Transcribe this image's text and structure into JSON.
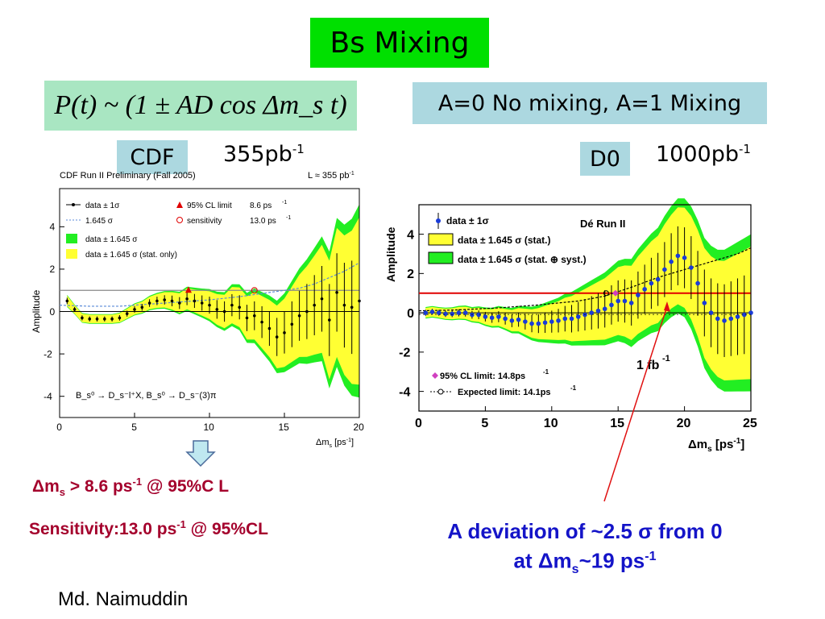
{
  "slide": {
    "title": "Bs Mixing",
    "formula": "P(t) ~ (1 ± AD cos Δm_s t)",
    "mixing_note": "A=0 No mixing, A=1 Mixing",
    "left_exp": {
      "name": "CDF",
      "lumi": "355pb",
      "lumi_exp": "-1"
    },
    "right_exp": {
      "name": "D0",
      "lumi": "1000pb",
      "lumi_exp": "-1"
    },
    "limit_text": {
      "pre": "Δm",
      "sub": "s",
      "mid": " > 8.6 ps",
      "sup": "-1",
      "post": " @ 95%C L"
    },
    "sensitivity_text": {
      "pre": "Sensitivity:13.0 ps",
      "sup": "-1",
      "post": " @ 95%CL"
    },
    "deviation_line1": "A deviation of ~2.5 σ from 0",
    "deviation_line2": {
      "pre": "at Δm",
      "sub": "s",
      "mid": "~19 ps",
      "sup": "-1"
    },
    "author": "Md. Naimuddin",
    "colors": {
      "title_green": "#00e000",
      "formula_bg": "#a9e6c2",
      "note_bg": "#acd8e0",
      "band_yellow": "#ffff33",
      "band_green": "#22ee22",
      "red_text": "#a4002c",
      "blue_text": "#1414c8"
    }
  },
  "chart_data": [
    {
      "type": "line",
      "title": "CDF Run II Preliminary (Fall 2005)",
      "lumi_label": "L ≈ 355 pb",
      "lumi_label_sup": "-1",
      "xlabel": "Δm",
      "xlabel_sub": "s",
      "xlabel_unit": " [ps",
      "xlabel_sup": "-1",
      "xlabel_close": "]",
      "ylabel": "Amplitude",
      "xlim": [
        0,
        20
      ],
      "ylim": [
        -5,
        5.8
      ],
      "xticks": [
        0,
        5,
        10,
        15,
        20
      ],
      "yticks": [
        -4,
        -2,
        0,
        2,
        4
      ],
      "legend": [
        {
          "label": "data ± 1σ",
          "marker": "dot-bar"
        },
        {
          "label": "95% CL limit",
          "value": "8.6 ps",
          "value_sup": "-1",
          "marker": "red-triangle"
        },
        {
          "label": "1.645 σ",
          "marker": "dotted-blue"
        },
        {
          "label": "sensitivity",
          "value": "13.0 ps",
          "value_sup": "-1",
          "marker": "red-circle"
        },
        {
          "label": "data ± 1.645 σ",
          "marker": "green-box"
        },
        {
          "label": "data ± 1.645 σ (stat. only)",
          "marker": "yellow-box"
        }
      ],
      "annotation": "B_s⁰ → D_s⁻l⁺X,  B_s⁰ → D_s⁻(3)π",
      "reference_line": 1,
      "cl_limit_x": 8.6,
      "sensitivity_x": 13.0,
      "series": [
        {
          "name": "data ± 1σ",
          "x": [
            0.5,
            1.0,
            1.5,
            2.0,
            2.5,
            3.0,
            3.5,
            4.0,
            4.5,
            5.0,
            5.5,
            6.0,
            6.5,
            7.0,
            7.5,
            8.0,
            8.5,
            9.0,
            9.5,
            10.0,
            10.5,
            11.0,
            11.5,
            12.0,
            12.5,
            13.0,
            13.5,
            14.0,
            14.5,
            15.0,
            15.5,
            16.0,
            16.5,
            17.0,
            17.5,
            18.0,
            18.5,
            19.0,
            19.5,
            20.0
          ],
          "y": [
            0.5,
            0.1,
            -0.3,
            -0.35,
            -0.35,
            -0.35,
            -0.35,
            -0.3,
            -0.1,
            0.1,
            0.2,
            0.4,
            0.5,
            0.55,
            0.5,
            0.4,
            0.6,
            0.5,
            0.4,
            0.3,
            0.1,
            0.0,
            0.3,
            0.2,
            -0.3,
            -0.2,
            -0.5,
            -0.8,
            -1.2,
            -1.0,
            -0.6,
            -0.2,
            0.0,
            0.3,
            0.6,
            -0.4,
            0.9,
            0.3,
            0.2,
            0.5
          ],
          "err": [
            0.15,
            0.12,
            0.12,
            0.12,
            0.12,
            0.12,
            0.12,
            0.13,
            0.14,
            0.15,
            0.16,
            0.18,
            0.2,
            0.22,
            0.25,
            0.28,
            0.3,
            0.33,
            0.36,
            0.4,
            0.44,
            0.48,
            0.52,
            0.57,
            0.62,
            0.68,
            0.75,
            0.82,
            0.9,
            0.98,
            1.08,
            1.18,
            1.3,
            1.42,
            1.55,
            1.7,
            1.85,
            2.0,
            2.2,
            2.4
          ]
        },
        {
          "name": "1.645 σ",
          "x": [
            0,
            2,
            4,
            6,
            8,
            10,
            12,
            14,
            16,
            17,
            18,
            19,
            20
          ],
          "y": [
            0.3,
            0.25,
            0.25,
            0.35,
            0.45,
            0.55,
            0.7,
            0.9,
            1.1,
            1.3,
            1.6,
            1.9,
            2.3
          ]
        }
      ]
    },
    {
      "type": "line",
      "title": "Dé Run II",
      "xlabel": "Δm",
      "xlabel_sub": "s",
      "xlabel_unit": " [ps",
      "xlabel_sup": "-1",
      "xlabel_close": "]",
      "ylabel": "Amplitude",
      "xlim": [
        0,
        25
      ],
      "ylim": [
        -5,
        5.5
      ],
      "xticks": [
        0,
        5,
        10,
        15,
        20,
        25
      ],
      "yticks": [
        -4,
        -2,
        0,
        2,
        4
      ],
      "legend": [
        {
          "label": "data ± 1σ",
          "marker": "blue-dot-bar"
        },
        {
          "label": "data ± 1.645 σ (stat.)",
          "marker": "yellow-box"
        },
        {
          "label": "data ± 1.645 σ (stat. ⊕ syst.)",
          "marker": "green-box"
        }
      ],
      "legend2": [
        {
          "label": "95% CL limit: 14.8ps",
          "label_sup": "-1",
          "marker": "magenta-diamond"
        },
        {
          "label": "Expected limit: 14.1ps",
          "label_sup": "-1",
          "marker": "dashed-circle"
        }
      ],
      "annotation": "1 fb",
      "annotation_sup": "-1",
      "reference_line": 1,
      "cl_limit_x": 14.8,
      "expected_x": 14.1,
      "series": [
        {
          "name": "data ± 1σ",
          "x": [
            0.5,
            1.0,
            1.5,
            2.0,
            2.5,
            3.0,
            3.5,
            4.0,
            4.5,
            5.0,
            5.5,
            6.0,
            6.5,
            7.0,
            7.5,
            8.0,
            8.5,
            9.0,
            9.5,
            10.0,
            10.5,
            11.0,
            11.5,
            12.0,
            12.5,
            13.0,
            13.5,
            14.0,
            14.5,
            15.0,
            15.5,
            16.0,
            16.5,
            17.0,
            17.5,
            18.0,
            18.5,
            19.0,
            19.5,
            20.0,
            20.5,
            21.0,
            21.5,
            22.0,
            22.5,
            23.0,
            23.5,
            24.0,
            24.5,
            25.0
          ],
          "y": [
            0.0,
            0.05,
            0.0,
            -0.05,
            -0.05,
            0.0,
            0.0,
            -0.1,
            -0.1,
            -0.2,
            -0.25,
            -0.2,
            -0.3,
            -0.4,
            -0.35,
            -0.45,
            -0.55,
            -0.55,
            -0.5,
            -0.45,
            -0.4,
            -0.3,
            -0.3,
            -0.2,
            -0.1,
            0.0,
            0.1,
            0.2,
            0.4,
            0.6,
            0.6,
            0.5,
            0.9,
            1.2,
            1.5,
            1.7,
            2.2,
            2.6,
            2.9,
            2.8,
            2.3,
            1.5,
            0.5,
            0.0,
            -0.3,
            -0.4,
            -0.3,
            -0.2,
            -0.1,
            0.0
          ],
          "err": [
            0.15,
            0.15,
            0.15,
            0.16,
            0.17,
            0.18,
            0.19,
            0.2,
            0.22,
            0.24,
            0.26,
            0.28,
            0.3,
            0.33,
            0.36,
            0.4,
            0.44,
            0.48,
            0.52,
            0.56,
            0.6,
            0.65,
            0.7,
            0.75,
            0.8,
            0.85,
            0.9,
            0.95,
            1.0,
            1.05,
            1.1,
            1.15,
            1.2,
            1.25,
            1.3,
            1.35,
            1.4,
            1.45,
            1.5,
            1.55,
            1.6,
            1.65,
            1.7,
            1.75,
            1.8,
            1.85,
            1.9,
            1.95,
            2.0,
            2.05
          ]
        },
        {
          "name": "Expected limit",
          "x": [
            0,
            3,
            6,
            9,
            12,
            14,
            16,
            18,
            20,
            22,
            24,
            25
          ],
          "y": [
            0.1,
            0.15,
            0.25,
            0.4,
            0.6,
            0.85,
            1.3,
            1.8,
            2.2,
            2.6,
            3.0,
            3.3
          ]
        }
      ]
    }
  ]
}
